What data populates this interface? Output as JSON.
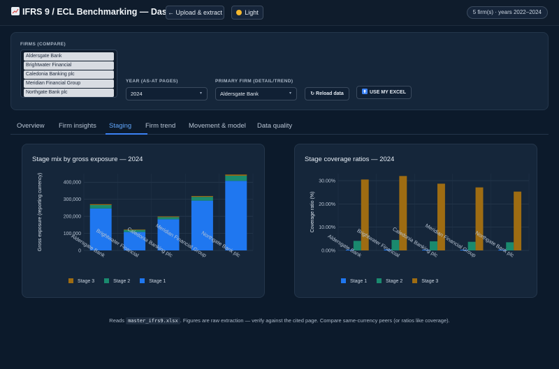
{
  "header": {
    "title": "IFRS 9 / ECL Benchmarking — Dashboard",
    "upload_label": "← Upload & extract",
    "theme_label": "Light",
    "status_pill": "5 firm(s) · years 2022–2024"
  },
  "controls": {
    "firms_label": "FIRMS (COMPARE)",
    "firms": [
      "Aldersgate Bank",
      "Brightwater Financial",
      "Caledonia Banking plc",
      "Meridian Financial Group",
      "Northgate Bank plc"
    ],
    "year_label": "YEAR (AS-AT PAGES)",
    "year_value": "2024",
    "primary_label": "PRIMARY FIRM (DETAIL/TREND)",
    "primary_value": "Aldersgate Bank",
    "reload_label": "↻ Reload data",
    "excel_label": "USE MY EXCEL"
  },
  "tabs": [
    "Overview",
    "Firm insights",
    "Staging",
    "Firm trend",
    "Movement & model",
    "Data quality"
  ],
  "active_tab": "Staging",
  "colors": {
    "stage1": "#1f77f0",
    "stage2": "#1a8a6e",
    "stage3": "#9e6c12",
    "accent": "#3b82f6"
  },
  "chart_data": [
    {
      "type": "bar",
      "stacked": true,
      "title": "Stage mix by gross exposure — 2024",
      "xlabel": "",
      "ylabel": "Gross exposure (reporting currency)",
      "categories": [
        "Aldersgate Bank",
        "Brightwater Financial",
        "Caledonia Banking plc",
        "Meridian Financial Group",
        "Northgate Bank plc"
      ],
      "y_ticks": [
        "0",
        "100,000",
        "200,000",
        "300,000",
        "400,000"
      ],
      "ylim": [
        0,
        450000
      ],
      "series": [
        {
          "name": "Stage 1",
          "values": [
            246000,
            108000,
            183000,
            292000,
            408000
          ]
        },
        {
          "name": "Stage 2",
          "values": [
            20000,
            12000,
            12000,
            22000,
            30000
          ]
        },
        {
          "name": "Stage 3",
          "values": [
            5000,
            3000,
            4000,
            5000,
            7000
          ]
        }
      ],
      "legend": [
        "Stage 3",
        "Stage 2",
        "Stage 1"
      ],
      "legend_position": "bottom",
      "grid": true
    },
    {
      "type": "bar",
      "stacked": false,
      "title": "Stage coverage ratios — 2024",
      "xlabel": "",
      "ylabel": "Coverage ratio (%)",
      "categories": [
        "Aldersgate Bank",
        "Brightwater Financial",
        "Caledonia Banking plc",
        "Meridian Financial Group",
        "Northgate Bank plc"
      ],
      "y_ticks": [
        "0.00%",
        "10.00%",
        "20.00%",
        "30.00%"
      ],
      "ylim": [
        0,
        33
      ],
      "series": [
        {
          "name": "Stage 1",
          "values": [
            0.3,
            0.4,
            0.3,
            0.3,
            0.3
          ]
        },
        {
          "name": "Stage 2",
          "values": [
            4.1,
            4.5,
            3.9,
            3.7,
            3.5
          ]
        },
        {
          "name": "Stage 3",
          "values": [
            30.5,
            32.0,
            28.7,
            27.1,
            25.3
          ]
        }
      ],
      "legend": [
        "Stage 1",
        "Stage 2",
        "Stage 3"
      ],
      "legend_position": "bottom",
      "grid": true
    }
  ],
  "footer": {
    "prefix": "Reads",
    "file": "master_ifrs9.xlsx",
    "suffix": ". Figures are raw extraction — verify against the cited page. Compare same-currency peers (or ratios like coverage)."
  }
}
